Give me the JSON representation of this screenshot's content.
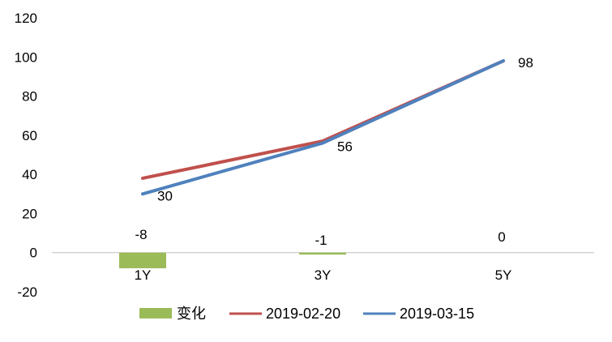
{
  "chart_data": {
    "type": "bar-line-combo",
    "categories": [
      "1Y",
      "3Y",
      "5Y"
    ],
    "series": [
      {
        "name": "变化",
        "kind": "bar",
        "values": [
          -8,
          -1,
          0
        ],
        "color": "#9BBB59",
        "data_labels": [
          "-8",
          "-1",
          "0"
        ]
      },
      {
        "name": "2019-02-20",
        "kind": "line",
        "values": [
          38,
          57,
          98
        ],
        "color": "#C0504D"
      },
      {
        "name": "2019-03-15",
        "kind": "line",
        "values": [
          30,
          56,
          98
        ],
        "color": "#4F81BD",
        "data_labels": [
          "30",
          "56",
          "98"
        ]
      }
    ],
    "ylim": [
      -20,
      120
    ],
    "yticks": [
      "120",
      "100",
      "80",
      "60",
      "40",
      "20",
      "0",
      "-20"
    ],
    "ytick_values": [
      120,
      100,
      80,
      60,
      40,
      20,
      0,
      -20
    ],
    "grid": false,
    "legend": "bottom",
    "title": "",
    "xlabel": "",
    "ylabel": ""
  }
}
